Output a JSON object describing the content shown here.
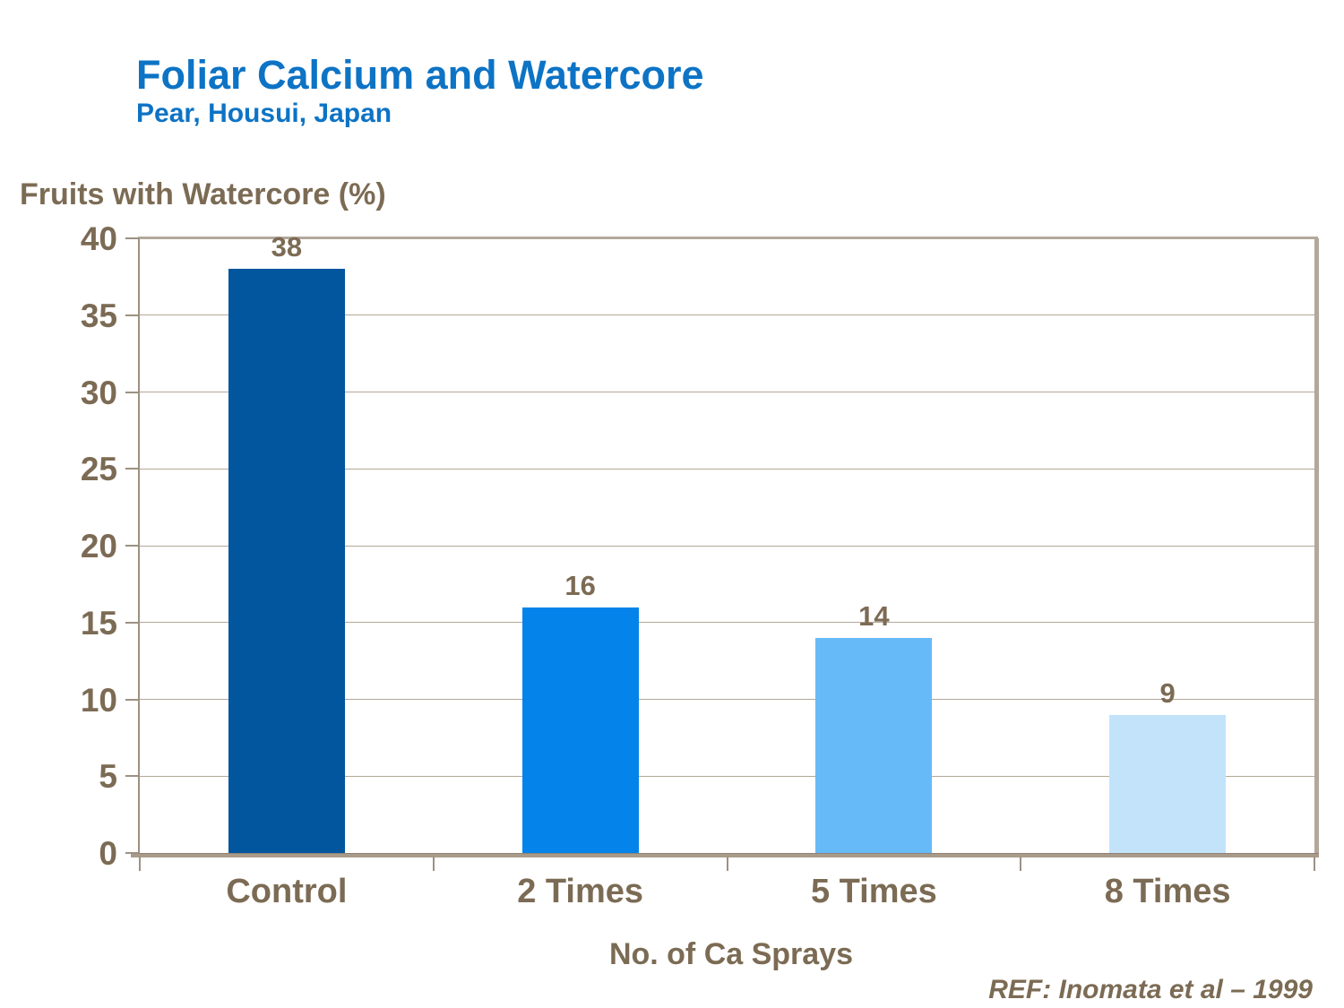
{
  "header": {
    "title": "Foliar Calcium and Watercore",
    "subtitle": "Pear, Housui, Japan"
  },
  "chart_data": {
    "type": "bar",
    "title": "Foliar Calcium and Watercore",
    "subtitle": "Pear, Housui, Japan",
    "ylabel": "Fruits with Watercore (%)",
    "xlabel": "No. of Ca Sprays",
    "categories": [
      "Control",
      "2 Times",
      "5 Times",
      "8 Times"
    ],
    "values": [
      38,
      16,
      14,
      9
    ],
    "data_labels": [
      "38",
      "16",
      "14",
      "9"
    ],
    "ylim": [
      0,
      40
    ],
    "yticks": [
      0,
      5,
      10,
      15,
      20,
      25,
      30,
      35,
      40
    ],
    "grid": true,
    "legend_position": "none",
    "bar_colors": [
      "#02569e",
      "#0483ea",
      "#66baf8",
      "#c3e3fb"
    ]
  },
  "footer": {
    "reference": "REF: Inomata et al – 1999"
  },
  "colors": {
    "title_blue": "#0d73c5",
    "label_brown": "#7c6b54",
    "gridline": "#b4a797",
    "axis_frame": "#b3a89b",
    "axis_spine": "#9c9183"
  }
}
